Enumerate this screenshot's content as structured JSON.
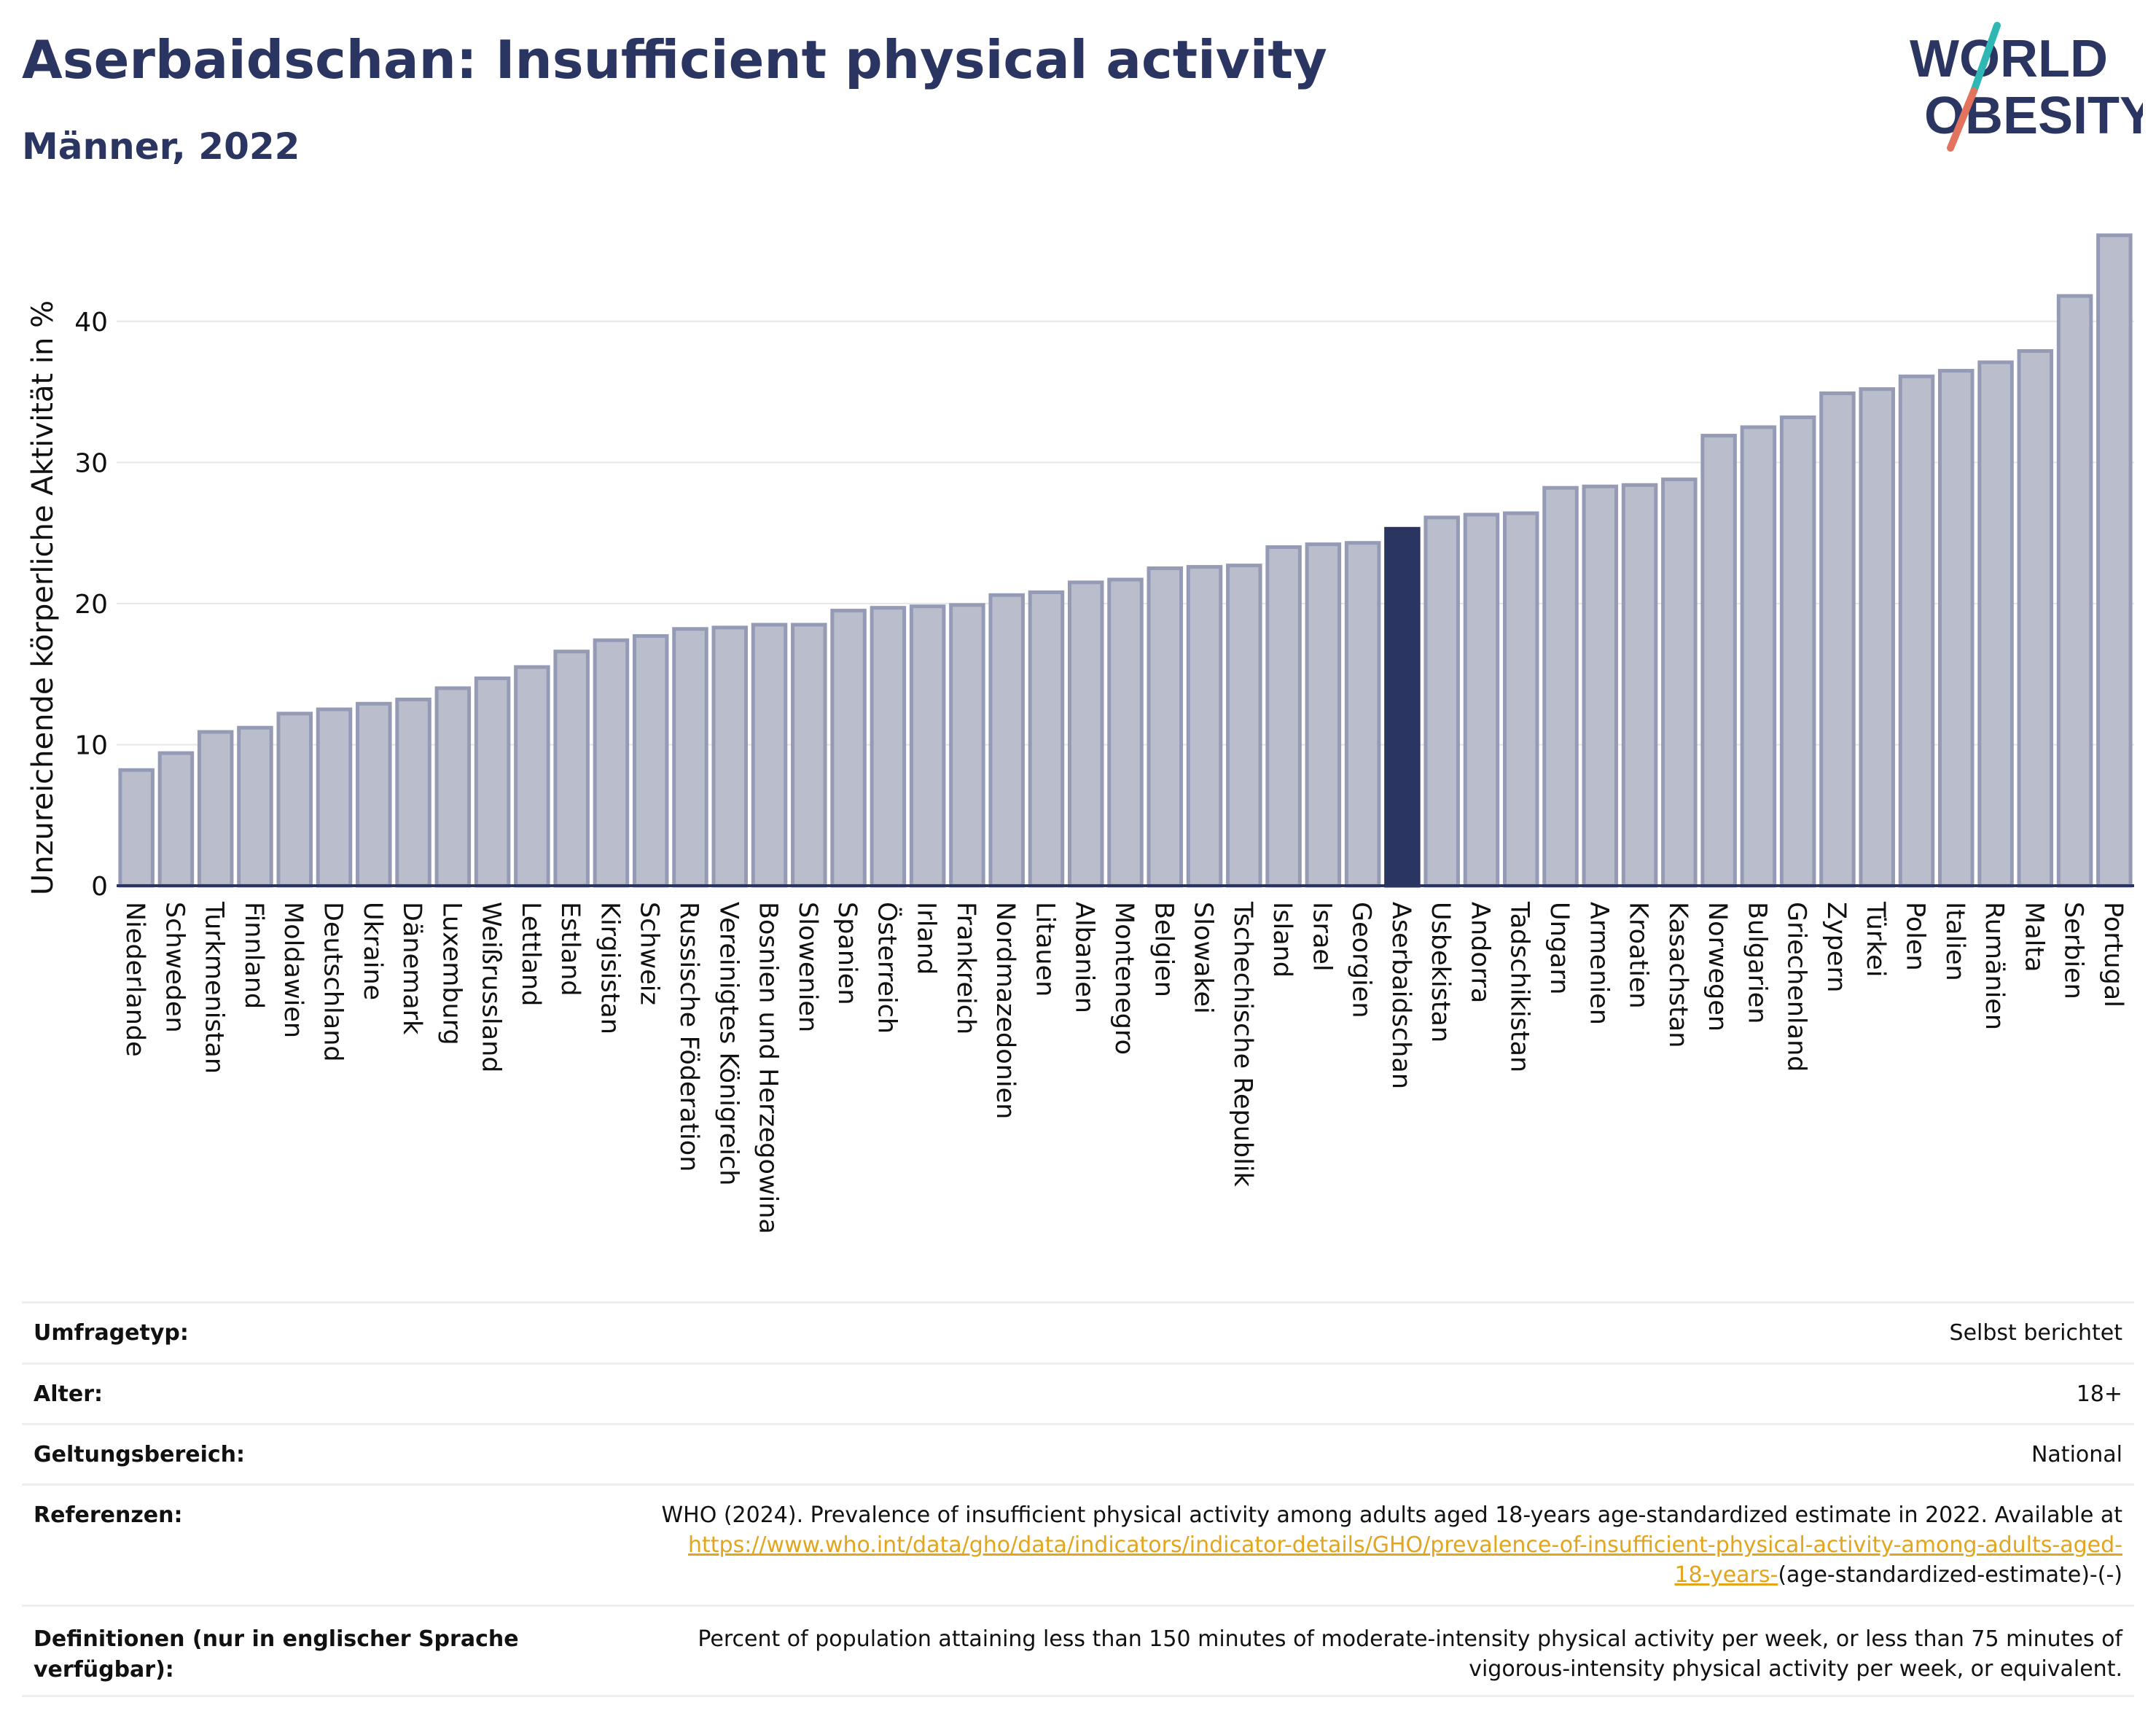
{
  "header": {
    "title": "Aserbaidschan: Insufficient physical activity",
    "subtitle": "Männer, 2022"
  },
  "logo": {
    "line1": "WORLD",
    "line2": "OBESITY",
    "colors": {
      "text": "#2b3561",
      "slash_top": "#2fb8b3",
      "slash_bottom": "#e3735e"
    }
  },
  "chart_data": {
    "type": "bar",
    "ylabel": "Unzureichende körperliche Aktivität in %",
    "xlabel": "",
    "ylim": [
      0,
      46.5
    ],
    "yticks": [
      0,
      10,
      20,
      30,
      40
    ],
    "grid": true,
    "highlight": "Aserbaidschan",
    "colors": {
      "bar": "#b9bdcc",
      "bar_border": "#959bb5",
      "highlight": "#2b3561",
      "axis": "#2b3561",
      "grid": "#e6e6e6"
    },
    "categories": [
      "Niederlande",
      "Schweden",
      "Turkmenistan",
      "Finnland",
      "Moldawien",
      "Deutschland",
      "Ukraine",
      "Dänemark",
      "Luxemburg",
      "Weißrussland",
      "Lettland",
      "Estland",
      "Kirgisistan",
      "Schweiz",
      "Russische Föderation",
      "Vereinigtes Königreich",
      "Bosnien und Herzegowina",
      "Slowenien",
      "Spanien",
      "Österreich",
      "Irland",
      "Frankreich",
      "Nordmazedonien",
      "Litauen",
      "Albanien",
      "Montenegro",
      "Belgien",
      "Slowakei",
      "Tschechische Republik",
      "Island",
      "Israel",
      "Georgien",
      "Aserbaidschan",
      "Usbekistan",
      "Andorra",
      "Tadschikistan",
      "Ungarn",
      "Armenien",
      "Kroatien",
      "Kasachstan",
      "Norwegen",
      "Bulgarien",
      "Griechenland",
      "Zypern",
      "Türkei",
      "Polen",
      "Italien",
      "Rumänien",
      "Malta",
      "Serbien",
      "Portugal"
    ],
    "values": [
      8.2,
      9.4,
      10.9,
      11.2,
      12.2,
      12.5,
      12.9,
      13.2,
      14.0,
      14.7,
      15.5,
      16.6,
      17.4,
      17.7,
      18.2,
      18.3,
      18.5,
      18.5,
      19.5,
      19.7,
      19.8,
      19.9,
      20.6,
      20.8,
      21.5,
      21.7,
      22.5,
      22.6,
      22.7,
      24.0,
      24.2,
      24.3,
      25.3,
      26.1,
      26.3,
      26.4,
      28.2,
      28.3,
      28.4,
      28.8,
      31.9,
      32.5,
      33.2,
      34.9,
      35.2,
      36.1,
      36.5,
      37.1,
      37.9,
      41.8,
      46.1
    ]
  },
  "info": {
    "rows": [
      {
        "label": "Umfragetyp:",
        "value": "Selbst berichtet"
      },
      {
        "label": "Alter:",
        "value": "18+"
      },
      {
        "label": "Geltungsbereich:",
        "value": "National"
      }
    ],
    "references": {
      "label": "Referenzen:",
      "text": "WHO (2024). Prevalence of insufficient physical activity among adults aged 18-years age-standardized estimate in 2022. Available at",
      "link_line1": "https://www.who.int/data/gho/data/indicators/indicator-details/GHO/prevalence-of-insufficient-physical-activity-among-adults-aged-",
      "link_line2": "18-years-",
      "suffix": "(age-standardized-estimate)-(-)"
    },
    "definitions": {
      "label_line1": "Definitionen (nur in englischer Sprache",
      "label_line2": "verfügbar):",
      "line1": "Percent of population attaining less than 150 minutes of moderate-intensity physical activity per week, or less than 75 minutes of",
      "line2": "vigorous-intensity physical activity per week, or equivalent."
    }
  }
}
